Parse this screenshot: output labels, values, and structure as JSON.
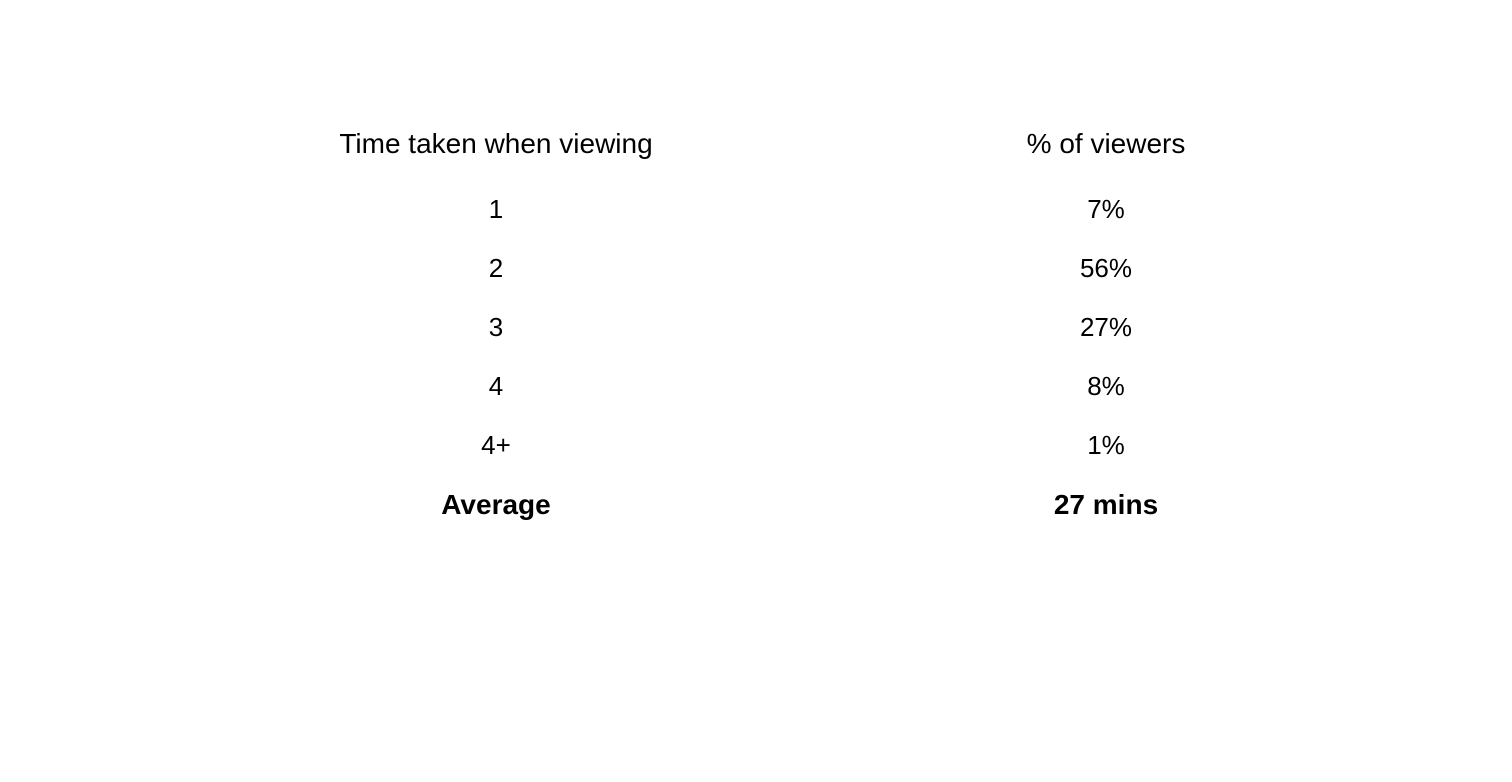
{
  "table": {
    "headers": {
      "left": "Time taken when viewing",
      "right": "% of viewers"
    },
    "rows": [
      {
        "time": "1",
        "percent": "7%"
      },
      {
        "time": "2",
        "percent": "56%"
      },
      {
        "time": "3",
        "percent": "27%"
      },
      {
        "time": "4",
        "percent": "8%"
      },
      {
        "time": "4+",
        "percent": "1%"
      }
    ],
    "footer": {
      "label": "Average",
      "value": "27 mins"
    },
    "styling": {
      "background_color": "#ffffff",
      "text_color": "#000000",
      "header_fontsize": 28,
      "data_fontsize": 26,
      "footer_fontsize": 28,
      "header_fontweight": 400,
      "data_fontweight": 400,
      "footer_fontweight": 700,
      "row_gap": 28,
      "container_width": 900
    }
  }
}
